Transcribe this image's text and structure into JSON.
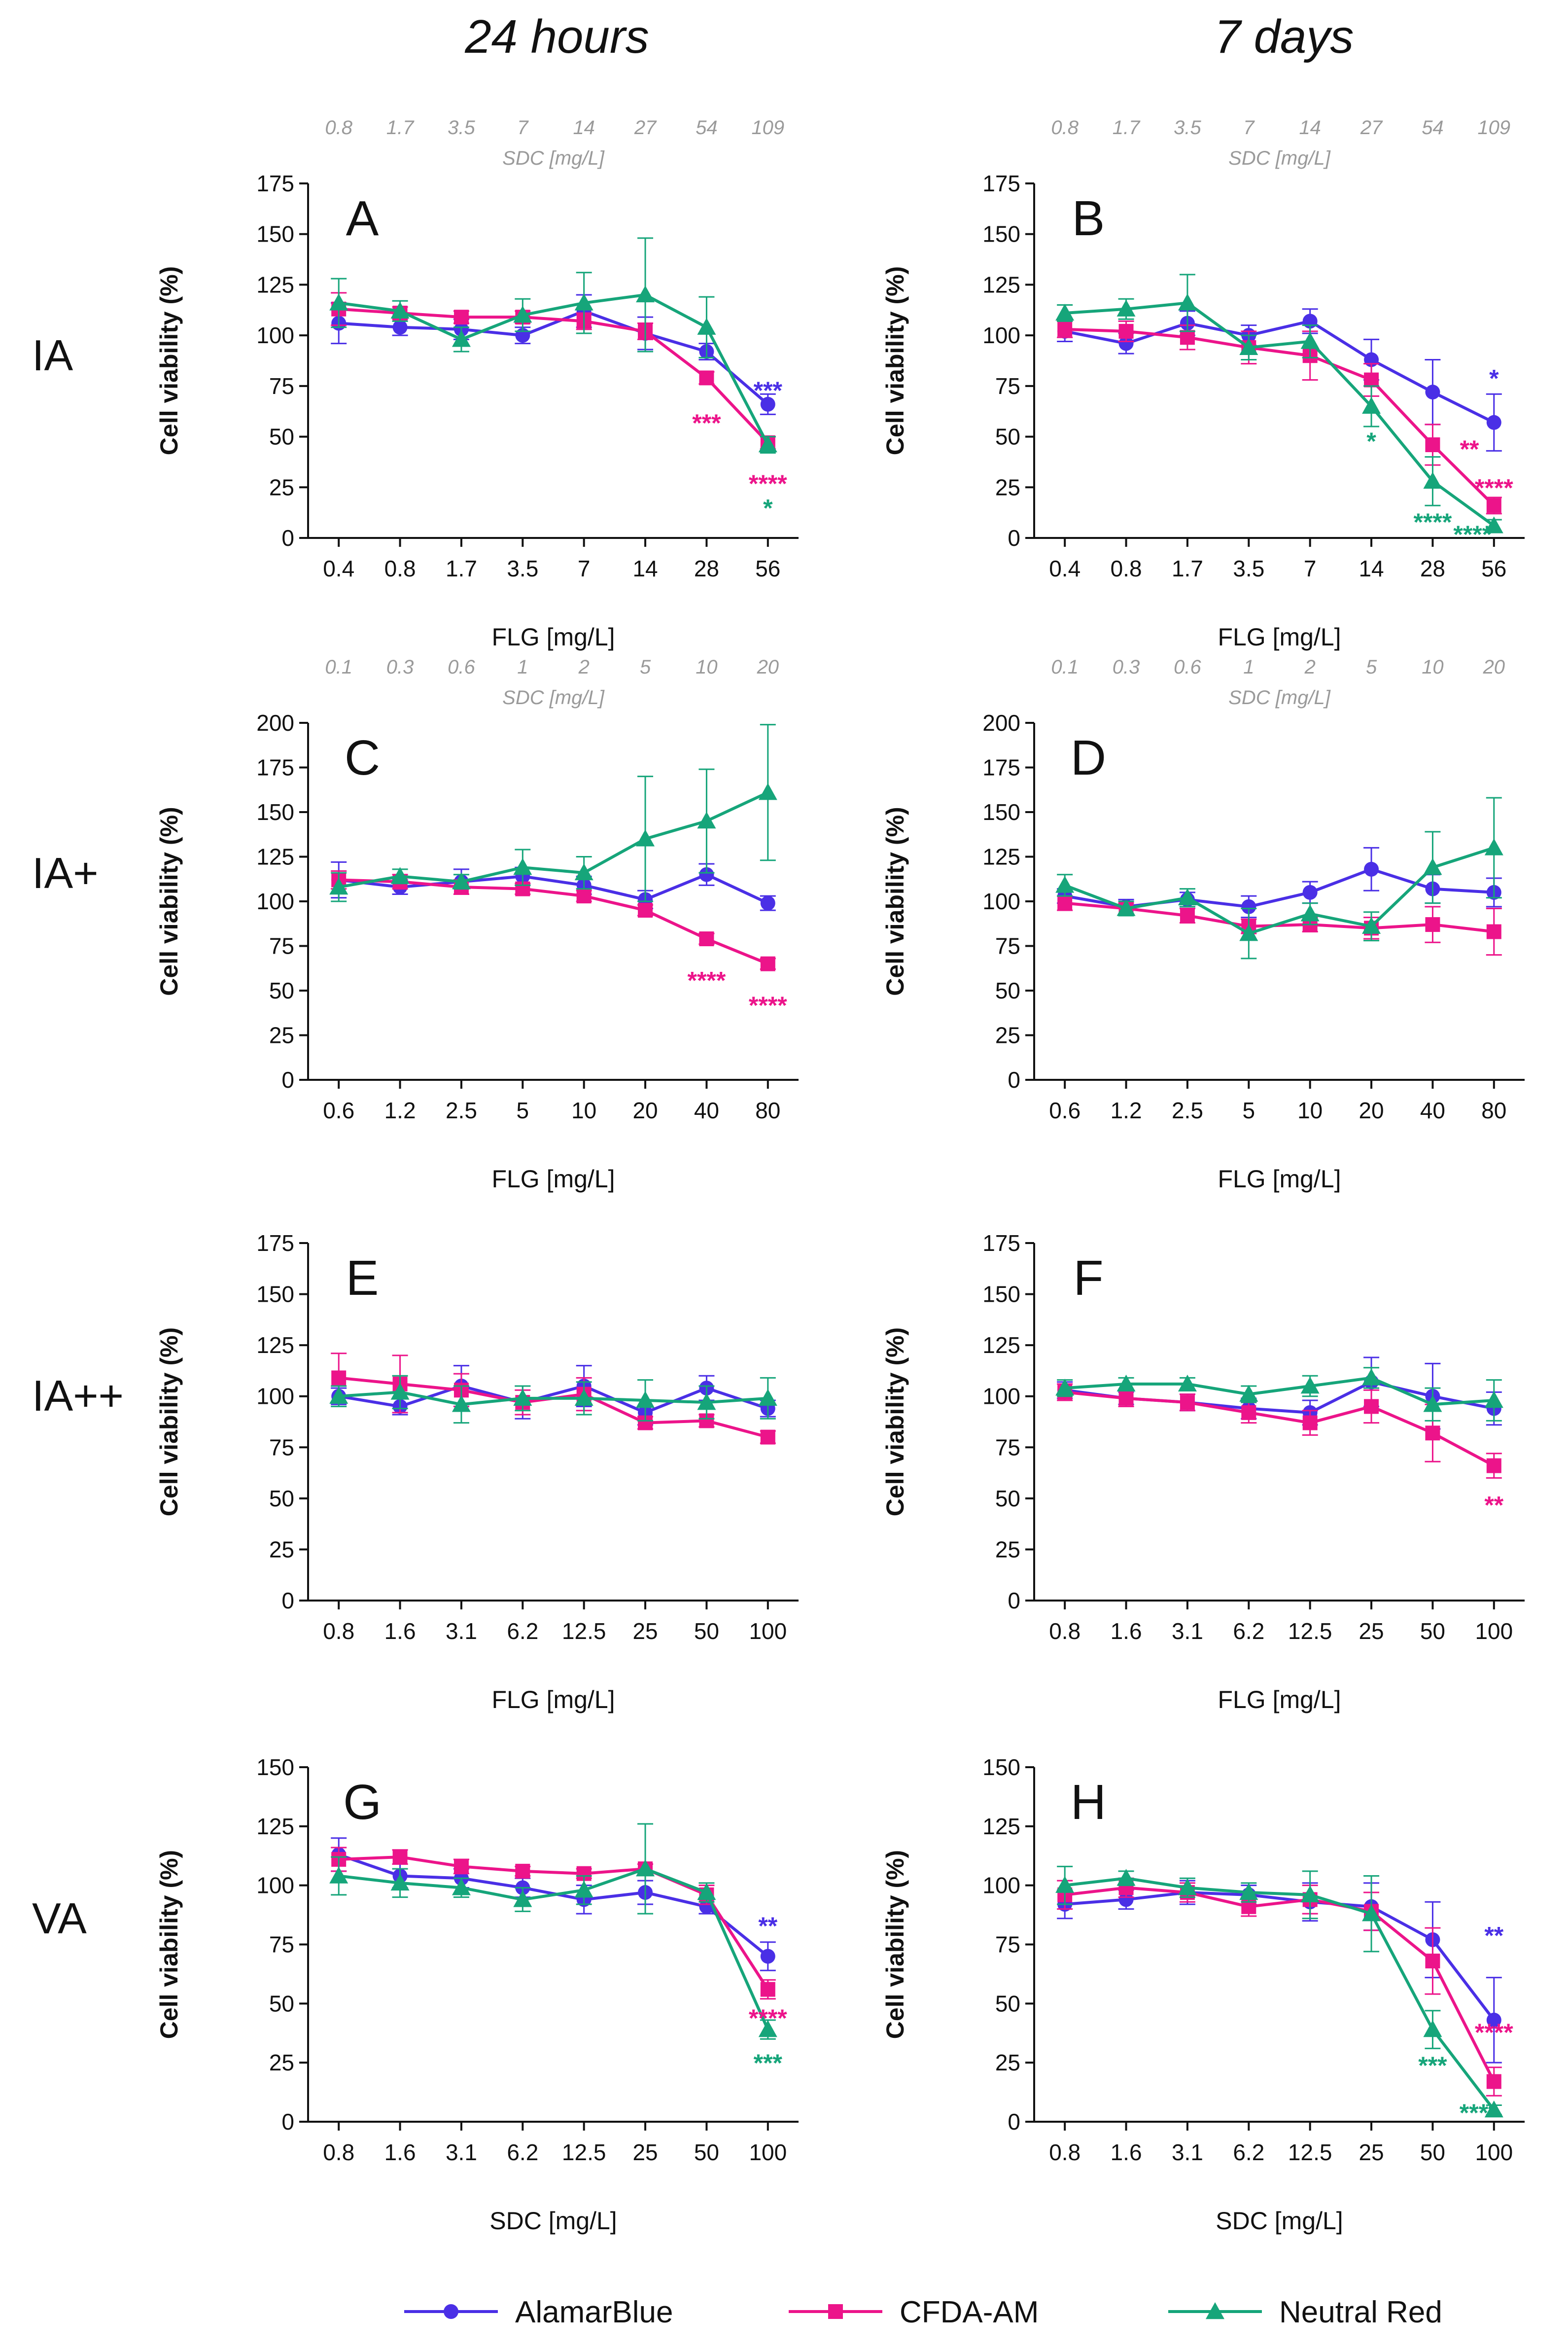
{
  "column_titles": [
    "24 hours",
    "7 days"
  ],
  "row_labels": [
    "IA",
    "IA+",
    "IA++",
    "VA"
  ],
  "colors": {
    "AlamarBlue": "#4a2fe6",
    "CFDA-AM": "#ec148a",
    "Neutral Red": "#16a57a",
    "axis": "#111111",
    "secondary_axis": "#9a9a9a"
  },
  "legend": [
    {
      "name": "AlamarBlue",
      "marker": "circle"
    },
    {
      "name": "CFDA-AM",
      "marker": "square"
    },
    {
      "name": "Neutral Red",
      "marker": "triangle"
    }
  ],
  "chart_data": [
    {
      "type": "line",
      "letter": "A",
      "row": "IA",
      "column": "24 hours",
      "ylabel": "Cell viability (%)",
      "xlabel": "FLG [mg/L]",
      "secondary_xlabel": "SDC [mg/L]",
      "secondary_ticks": [
        "0.8",
        "1.7",
        "3.5",
        "7",
        "14",
        "27",
        "54",
        "109"
      ],
      "categories": [
        "0.4",
        "0.8",
        "1.7",
        "3.5",
        "7",
        "14",
        "28",
        "56"
      ],
      "ylim": [
        0,
        175
      ],
      "yticks": [
        0,
        25,
        50,
        75,
        100,
        125,
        150,
        175
      ],
      "series": [
        {
          "name": "AlamarBlue",
          "values": [
            106,
            104,
            103,
            100,
            112,
            101,
            92,
            66
          ],
          "err": [
            10,
            4,
            5,
            4,
            8,
            8,
            4,
            5
          ]
        },
        {
          "name": "CFDA-AM",
          "values": [
            113,
            111,
            109,
            109,
            107,
            102,
            79,
            47
          ],
          "err": [
            8,
            3,
            3,
            3,
            4,
            4,
            3,
            3
          ]
        },
        {
          "name": "Neutral Red",
          "values": [
            116,
            112,
            98,
            110,
            116,
            120,
            104,
            46
          ],
          "err": [
            12,
            5,
            6,
            8,
            15,
            28,
            15,
            4
          ]
        }
      ],
      "annotations": [
        {
          "text": "***",
          "series": "AlamarBlue",
          "x_index": 7,
          "y": 73
        },
        {
          "text": "***",
          "series": "CFDA-AM",
          "x_index": 6,
          "y": 57
        },
        {
          "text": "****",
          "series": "CFDA-AM",
          "x_index": 7,
          "y": 27
        },
        {
          "text": "*",
          "series": "Neutral Red",
          "x_index": 7,
          "y": 15
        }
      ]
    },
    {
      "type": "line",
      "letter": "B",
      "row": "IA",
      "column": "7 days",
      "ylabel": "Cell viability (%)",
      "xlabel": "FLG [mg/L]",
      "secondary_xlabel": "SDC [mg/L]",
      "secondary_ticks": [
        "0.8",
        "1.7",
        "3.5",
        "7",
        "14",
        "27",
        "54",
        "109"
      ],
      "categories": [
        "0.4",
        "0.8",
        "1.7",
        "3.5",
        "7",
        "14",
        "28",
        "56"
      ],
      "ylim": [
        0,
        175
      ],
      "yticks": [
        0,
        25,
        50,
        75,
        100,
        125,
        150,
        175
      ],
      "series": [
        {
          "name": "AlamarBlue",
          "values": [
            102,
            96,
            106,
            100,
            107,
            88,
            72,
            57
          ],
          "err": [
            5,
            5,
            6,
            5,
            6,
            10,
            16,
            14
          ]
        },
        {
          "name": "CFDA-AM",
          "values": [
            103,
            102,
            99,
            94,
            90,
            78,
            46,
            16
          ],
          "err": [
            4,
            5,
            6,
            8,
            12,
            8,
            10,
            4
          ]
        },
        {
          "name": "Neutral Red",
          "values": [
            111,
            113,
            116,
            94,
            97,
            65,
            28,
            6
          ],
          "err": [
            4,
            5,
            14,
            6,
            8,
            10,
            12,
            3
          ]
        }
      ],
      "annotations": [
        {
          "text": "*",
          "series": "AlamarBlue",
          "x_index": 7,
          "y": 79
        },
        {
          "text": "*",
          "series": "Neutral Red",
          "x_index": 5,
          "y": 48
        },
        {
          "text": "**",
          "series": "CFDA-AM",
          "x_index": 6.6,
          "y": 44
        },
        {
          "text": "****",
          "series": "CFDA-AM",
          "x_index": 7,
          "y": 25
        },
        {
          "text": "****",
          "series": "Neutral Red",
          "x_index": 6,
          "y": 8
        },
        {
          "text": "****",
          "series": "Neutral Red",
          "x_index": 6.65,
          "y": 2
        }
      ]
    },
    {
      "type": "line",
      "letter": "C",
      "row": "IA+",
      "column": "24 hours",
      "ylabel": "Cell viability (%)",
      "xlabel": "FLG [mg/L]",
      "secondary_xlabel": "SDC [mg/L]",
      "secondary_ticks": [
        "0.1",
        "0.3",
        "0.6",
        "1",
        "2",
        "5",
        "10",
        "20"
      ],
      "categories": [
        "0.6",
        "1.2",
        "2.5",
        "5",
        "10",
        "20",
        "40",
        "80"
      ],
      "ylim": [
        0,
        200
      ],
      "yticks": [
        0,
        25,
        50,
        75,
        100,
        125,
        150,
        175,
        200
      ],
      "series": [
        {
          "name": "AlamarBlue",
          "values": [
            112,
            108,
            111,
            114,
            109,
            101,
            115,
            99
          ],
          "err": [
            10,
            4,
            7,
            5,
            5,
            5,
            6,
            4
          ]
        },
        {
          "name": "CFDA-AM",
          "values": [
            112,
            111,
            108,
            107,
            103,
            95,
            79,
            65
          ],
          "err": [
            5,
            4,
            4,
            3,
            3,
            3,
            3,
            3
          ]
        },
        {
          "name": "Neutral Red",
          "values": [
            108,
            114,
            111,
            119,
            116,
            135,
            145,
            161
          ],
          "err": [
            8,
            4,
            4,
            10,
            9,
            35,
            29,
            38
          ]
        }
      ],
      "annotations": [
        {
          "text": "****",
          "series": "CFDA-AM",
          "x_index": 6,
          "y": 56
        },
        {
          "text": "****",
          "series": "CFDA-AM",
          "x_index": 7,
          "y": 42
        }
      ]
    },
    {
      "type": "line",
      "letter": "D",
      "row": "IA+",
      "column": "7 days",
      "ylabel": "Cell viability (%)",
      "xlabel": "FLG [mg/L]",
      "secondary_xlabel": "SDC [mg/L]",
      "secondary_ticks": [
        "0.1",
        "0.3",
        "0.6",
        "1",
        "2",
        "5",
        "10",
        "20"
      ],
      "categories": [
        "0.6",
        "1.2",
        "2.5",
        "5",
        "10",
        "20",
        "40",
        "80"
      ],
      "ylim": [
        0,
        200
      ],
      "yticks": [
        0,
        25,
        50,
        75,
        100,
        125,
        150,
        175,
        200
      ],
      "series": [
        {
          "name": "AlamarBlue",
          "values": [
            103,
            97,
            101,
            97,
            105,
            118,
            107,
            105
          ],
          "err": [
            4,
            4,
            4,
            6,
            6,
            12,
            8,
            8
          ]
        },
        {
          "name": "CFDA-AM",
          "values": [
            99,
            96,
            92,
            86,
            87,
            85,
            87,
            83
          ],
          "err": [
            4,
            3,
            4,
            4,
            4,
            6,
            10,
            13
          ]
        },
        {
          "name": "Neutral Red",
          "values": [
            109,
            96,
            102,
            82,
            93,
            86,
            119,
            130
          ],
          "err": [
            6,
            4,
            5,
            14,
            6,
            8,
            20,
            28
          ]
        }
      ],
      "annotations": []
    },
    {
      "type": "line",
      "letter": "E",
      "row": "IA++",
      "column": "24 hours",
      "ylabel": "Cell viability (%)",
      "xlabel": "FLG [mg/L]",
      "categories": [
        "0.8",
        "1.6",
        "3.1",
        "6.2",
        "12.5",
        "25",
        "50",
        "100"
      ],
      "ylim": [
        0,
        175
      ],
      "yticks": [
        0,
        25,
        50,
        75,
        100,
        125,
        150,
        175
      ],
      "series": [
        {
          "name": "AlamarBlue",
          "values": [
            100,
            95,
            105,
            97,
            105,
            92,
            104,
            94
          ],
          "err": [
            4,
            4,
            10,
            8,
            10,
            6,
            6,
            4
          ]
        },
        {
          "name": "CFDA-AM",
          "values": [
            109,
            106,
            103,
            97,
            101,
            87,
            88,
            80
          ],
          "err": [
            12,
            14,
            8,
            6,
            8,
            3,
            3,
            3
          ]
        },
        {
          "name": "Neutral Red",
          "values": [
            100,
            102,
            96,
            99,
            99,
            98,
            97,
            99
          ],
          "err": [
            5,
            8,
            9,
            6,
            8,
            10,
            8,
            10
          ]
        }
      ],
      "annotations": []
    },
    {
      "type": "line",
      "letter": "F",
      "row": "IA++",
      "column": "7 days",
      "ylabel": "Cell viability (%)",
      "xlabel": "FLG [mg/L]",
      "categories": [
        "0.8",
        "1.6",
        "3.1",
        "6.2",
        "12.5",
        "25",
        "50",
        "100"
      ],
      "ylim": [
        0,
        175
      ],
      "yticks": [
        0,
        25,
        50,
        75,
        100,
        125,
        150,
        175
      ],
      "series": [
        {
          "name": "AlamarBlue",
          "values": [
            103,
            99,
            97,
            94,
            92,
            107,
            100,
            94
          ],
          "err": [
            4,
            3,
            4,
            5,
            6,
            12,
            16,
            8
          ]
        },
        {
          "name": "CFDA-AM",
          "values": [
            102,
            99,
            97,
            92,
            87,
            95,
            82,
            66
          ],
          "err": [
            4,
            4,
            4,
            5,
            6,
            8,
            14,
            6
          ]
        },
        {
          "name": "Neutral Red",
          "values": [
            104,
            106,
            106,
            101,
            105,
            109,
            96,
            98
          ],
          "err": [
            4,
            3,
            3,
            4,
            5,
            5,
            8,
            10
          ]
        }
      ],
      "annotations": [
        {
          "text": "**",
          "series": "CFDA-AM",
          "x_index": 7,
          "y": 47
        }
      ]
    },
    {
      "type": "line",
      "letter": "G",
      "row": "VA",
      "column": "24 hours",
      "ylabel": "Cell viability (%)",
      "xlabel": "SDC [mg/L]",
      "categories": [
        "0.8",
        "1.6",
        "3.1",
        "6.2",
        "12.5",
        "25",
        "50",
        "100"
      ],
      "ylim": [
        0,
        150
      ],
      "yticks": [
        0,
        25,
        50,
        75,
        100,
        125,
        150
      ],
      "series": [
        {
          "name": "AlamarBlue",
          "values": [
            113,
            104,
            103,
            99,
            94,
            97,
            91,
            70
          ],
          "err": [
            7,
            5,
            4,
            4,
            6,
            5,
            3,
            6
          ]
        },
        {
          "name": "CFDA-AM",
          "values": [
            111,
            112,
            108,
            106,
            105,
            107,
            96,
            56
          ],
          "err": [
            5,
            3,
            3,
            2,
            2,
            2,
            4,
            4
          ]
        },
        {
          "name": "Neutral Red",
          "values": [
            104,
            101,
            99,
            94,
            98,
            107,
            97,
            39
          ],
          "err": [
            8,
            6,
            4,
            5,
            6,
            19,
            4,
            4
          ]
        }
      ],
      "annotations": [
        {
          "text": "**",
          "series": "AlamarBlue",
          "x_index": 7,
          "y": 83
        },
        {
          "text": "****",
          "series": "CFDA-AM",
          "x_index": 7,
          "y": 44
        },
        {
          "text": "***",
          "series": "Neutral Red",
          "x_index": 7,
          "y": 25
        }
      ]
    },
    {
      "type": "line",
      "letter": "H",
      "row": "VA",
      "column": "7 days",
      "ylabel": "Cell viability (%)",
      "xlabel": "SDC [mg/L]",
      "categories": [
        "0.8",
        "1.6",
        "3.1",
        "6.2",
        "12.5",
        "25",
        "50",
        "100"
      ],
      "ylim": [
        0,
        150
      ],
      "yticks": [
        0,
        25,
        50,
        75,
        100,
        125,
        150
      ],
      "series": [
        {
          "name": "AlamarBlue",
          "values": [
            92,
            94,
            97,
            96,
            93,
            91,
            77,
            43
          ],
          "err": [
            6,
            4,
            5,
            4,
            8,
            10,
            16,
            18
          ]
        },
        {
          "name": "CFDA-AM",
          "values": [
            96,
            99,
            97,
            91,
            94,
            89,
            68,
            17
          ],
          "err": [
            6,
            4,
            4,
            4,
            6,
            8,
            14,
            6
          ]
        },
        {
          "name": "Neutral Red",
          "values": [
            100,
            103,
            99,
            97,
            96,
            88,
            39,
            5
          ],
          "err": [
            8,
            3,
            4,
            4,
            10,
            16,
            8,
            2
          ]
        }
      ],
      "annotations": [
        {
          "text": "**",
          "series": "AlamarBlue",
          "x_index": 7,
          "y": 79
        },
        {
          "text": "****",
          "series": "CFDA-AM",
          "x_index": 7,
          "y": 38
        },
        {
          "text": "***",
          "series": "Neutral Red",
          "x_index": 6,
          "y": 24
        },
        {
          "text": "****",
          "series": "Neutral Red",
          "x_index": 6.75,
          "y": 4
        }
      ]
    }
  ]
}
